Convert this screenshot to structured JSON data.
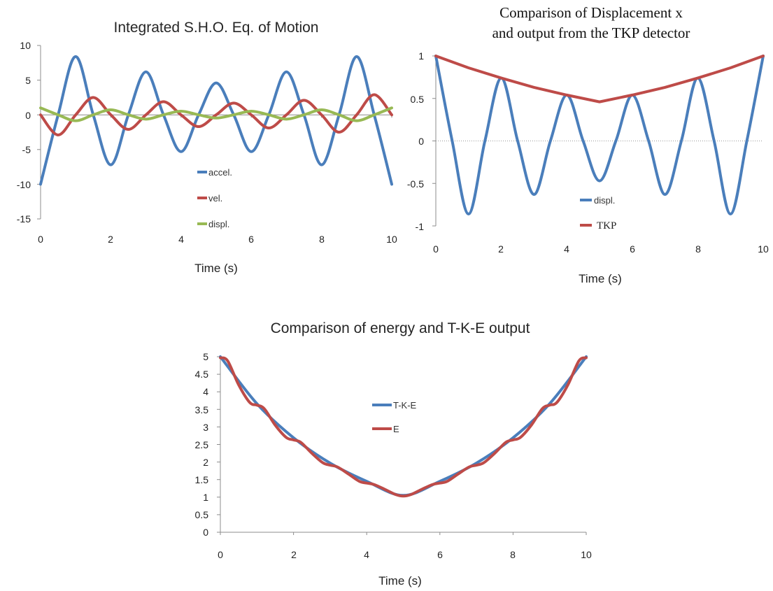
{
  "chart_data": [
    {
      "type": "line",
      "title": "Integrated S.H.O. Eq. of Motion",
      "xlabel": "Time  (s)",
      "ylabel": "",
      "xlim": [
        0,
        10
      ],
      "ylim": [
        -15,
        10
      ],
      "x_ticks": [
        "0",
        "2",
        "4",
        "6",
        "8",
        "10"
      ],
      "y_ticks": [
        "10",
        "5",
        "0",
        "-5",
        "-10",
        "-15"
      ],
      "legend_position": "center",
      "grid": false,
      "series": [
        {
          "name": "accel.",
          "color": "#4a7ebb",
          "x": [
            0,
            0.5,
            1.0,
            1.5,
            2.0,
            2.5,
            3.0,
            3.5,
            4.0,
            4.5,
            5.0,
            5.5,
            6.0,
            6.5,
            7.0,
            7.5,
            8.0,
            8.5,
            9.0,
            9.5,
            10.0
          ],
          "values": [
            -10.0,
            0,
            8.4,
            0,
            -7.2,
            0,
            6.2,
            0,
            -5.3,
            0,
            4.6,
            0,
            -5.3,
            0,
            6.2,
            0,
            -7.2,
            0,
            8.4,
            0,
            -10.0
          ]
        },
        {
          "name": "vel.",
          "color": "#be4b48",
          "x": [
            0,
            0.5,
            1.0,
            1.5,
            2.0,
            2.5,
            3.0,
            3.5,
            4.0,
            4.5,
            5.0,
            5.5,
            6.0,
            6.5,
            7.0,
            7.5,
            8.0,
            8.5,
            9.0,
            9.5,
            10.0
          ],
          "values": [
            0,
            -2.9,
            0,
            2.5,
            0,
            -2.1,
            0,
            1.9,
            0,
            -1.7,
            0,
            1.7,
            0,
            -1.9,
            0,
            2.1,
            0,
            -2.5,
            0,
            2.9,
            0
          ]
        },
        {
          "name": "displ.",
          "color": "#98b954",
          "x": [
            0,
            0.5,
            1.0,
            1.5,
            2.0,
            2.5,
            3.0,
            3.5,
            4.0,
            4.5,
            5.0,
            5.5,
            6.0,
            6.5,
            7.0,
            7.5,
            8.0,
            8.5,
            9.0,
            9.5,
            10.0
          ],
          "values": [
            1.0,
            0,
            -0.85,
            0,
            0.72,
            0,
            -0.62,
            0,
            0.53,
            0,
            -0.46,
            0,
            0.53,
            0,
            -0.62,
            0,
            0.72,
            0,
            -0.85,
            0,
            1.0
          ]
        }
      ]
    },
    {
      "type": "line",
      "title_lines": [
        "Comparison of Displacement x",
        "and output from the TKP detector"
      ],
      "xlabel": "Time  (s)",
      "ylabel": "",
      "xlim": [
        0,
        10
      ],
      "ylim": [
        -1,
        1
      ],
      "x_ticks": [
        "0",
        "2",
        "4",
        "6",
        "8",
        "10"
      ],
      "y_ticks": [
        "1",
        "0.5",
        "0",
        "-0.5",
        "-1"
      ],
      "legend_position": "bottom-center",
      "grid": false,
      "series": [
        {
          "name": "displ.",
          "color": "#4a7ebb",
          "x": [
            0,
            0.5,
            1.0,
            1.5,
            2.0,
            2.5,
            3.0,
            3.5,
            4.0,
            4.5,
            5.0,
            5.5,
            6.0,
            6.5,
            7.0,
            7.5,
            8.0,
            8.5,
            9.0,
            9.5,
            10.0
          ],
          "values": [
            1.0,
            0,
            -0.86,
            0,
            0.74,
            0,
            -0.63,
            0,
            0.54,
            0,
            -0.47,
            0,
            0.54,
            0,
            -0.63,
            0,
            0.74,
            0,
            -0.86,
            0,
            1.0
          ]
        },
        {
          "name": "TKP",
          "color": "#be4b48",
          "x": [
            0,
            1,
            2,
            3,
            4,
            5,
            6,
            7,
            8,
            9,
            10
          ],
          "values": [
            1.0,
            0.86,
            0.74,
            0.63,
            0.54,
            0.46,
            0.54,
            0.63,
            0.74,
            0.86,
            1.0
          ]
        }
      ]
    },
    {
      "type": "line",
      "title": "Comparison of energy and T-K-E output",
      "xlabel": "Time  (s)",
      "ylabel": "",
      "xlim": [
        0,
        10
      ],
      "ylim": [
        0,
        5
      ],
      "x_ticks": [
        "0",
        "2",
        "4",
        "6",
        "8",
        "10"
      ],
      "y_ticks": [
        "5",
        "4.5",
        "4",
        "3.5",
        "3",
        "2.5",
        "2",
        "1.5",
        "1",
        "0.5",
        "0"
      ],
      "legend_position": "upper-center",
      "grid": false,
      "series": [
        {
          "name": "T-K-E",
          "color": "#4a7ebb",
          "x": [
            0,
            1,
            2,
            3,
            4,
            5,
            6,
            7,
            8,
            9,
            10
          ],
          "values": [
            5.0,
            3.66,
            2.69,
            1.97,
            1.45,
            1.05,
            1.45,
            1.97,
            2.69,
            3.66,
            5.0
          ]
        },
        {
          "name": "E",
          "color": "#be4b48",
          "x": [
            0,
            0.2,
            0.5,
            0.8,
            1.0,
            1.2,
            1.5,
            1.8,
            2.0,
            2.2,
            2.5,
            2.8,
            3.0,
            3.2,
            3.5,
            3.8,
            4.0,
            4.2,
            4.5,
            4.8,
            5.0,
            5.2,
            5.5,
            5.8,
            6.0,
            6.2,
            6.5,
            6.8,
            7.0,
            7.2,
            7.5,
            7.8,
            8.0,
            8.2,
            8.5,
            8.8,
            9.0,
            9.2,
            9.5,
            9.8,
            10.0
          ],
          "values": [
            4.97,
            4.88,
            4.2,
            3.7,
            3.62,
            3.52,
            3.05,
            2.7,
            2.63,
            2.56,
            2.25,
            1.98,
            1.91,
            1.86,
            1.66,
            1.45,
            1.4,
            1.36,
            1.22,
            1.07,
            1.03,
            1.07,
            1.22,
            1.36,
            1.4,
            1.45,
            1.66,
            1.86,
            1.91,
            1.98,
            2.25,
            2.56,
            2.63,
            2.7,
            3.05,
            3.52,
            3.62,
            3.7,
            4.2,
            4.88,
            4.97
          ]
        }
      ]
    }
  ]
}
